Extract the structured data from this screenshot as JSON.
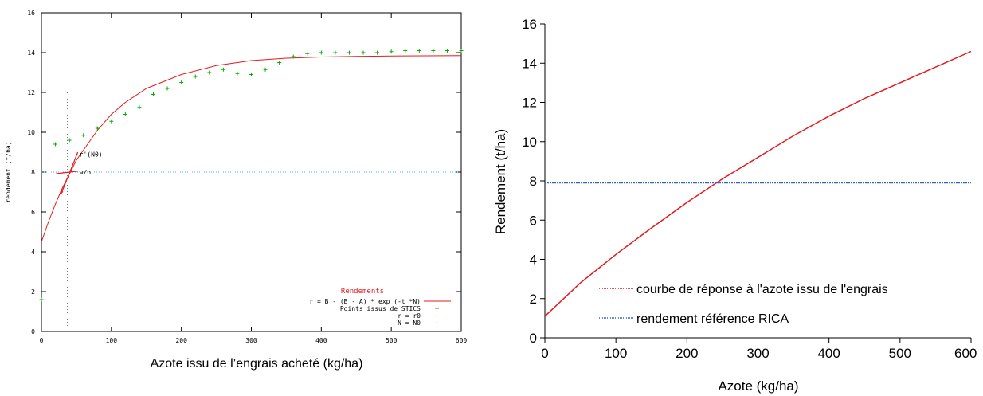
{
  "chart_data": [
    {
      "type": "line",
      "xlabel": "Azote issu de l’engrais acheté (kg/ha)",
      "ylabel": "rendement (t/ha)",
      "xlim": [
        0,
        600
      ],
      "ylim": [
        0,
        16
      ],
      "x_ticks": [
        "0",
        "100",
        "200",
        "300",
        "400",
        "500",
        "600"
      ],
      "y_ticks": [
        "0",
        "2",
        "4",
        "6",
        "8",
        "10",
        "12",
        "14",
        "16"
      ],
      "grid": false,
      "legend_title": "Rendements",
      "legend_position": "bottom-right",
      "annotations": [
        {
          "label": "r'(N0)",
          "x": 52,
          "y": 8.9
        },
        {
          "label": "w/p",
          "x": 52,
          "y": 8.0
        }
      ],
      "series": [
        {
          "name": "r = B - (B - A) * exp (-t *N)",
          "kind": "line",
          "color": "#e41a1c",
          "x": [
            0,
            10,
            20,
            30,
            40,
            50,
            60,
            80,
            100,
            120,
            150,
            200,
            250,
            300,
            350,
            400,
            450,
            500,
            550,
            600
          ],
          "y": [
            4.5,
            5.5,
            6.4,
            7.2,
            7.9,
            8.6,
            9.1,
            10.1,
            10.9,
            11.5,
            12.2,
            12.9,
            13.35,
            13.6,
            13.72,
            13.78,
            13.81,
            13.83,
            13.84,
            13.85
          ]
        },
        {
          "name": "Points issus de STICS",
          "kind": "scatter",
          "color": "#00b000",
          "x": [
            0,
            20,
            40,
            60,
            80,
            100,
            120,
            140,
            160,
            180,
            200,
            220,
            240,
            260,
            280,
            300,
            320,
            340,
            360,
            380,
            400,
            420,
            440,
            460,
            480,
            500,
            520,
            540,
            560,
            580,
            600
          ],
          "y": [
            1.6,
            9.4,
            9.6,
            9.85,
            10.2,
            10.55,
            10.9,
            11.25,
            11.9,
            12.2,
            12.5,
            12.8,
            13.0,
            13.15,
            12.95,
            12.9,
            13.15,
            13.5,
            13.8,
            13.95,
            14.0,
            14.0,
            14.0,
            14.0,
            14.0,
            14.05,
            14.1,
            14.1,
            14.1,
            14.1,
            14.1
          ]
        },
        {
          "name": "r = r0",
          "kind": "hline",
          "color": "#4da6ff",
          "y": 8.0
        },
        {
          "name": "N = N0",
          "kind": "vline",
          "color": "#777777",
          "x": 37
        }
      ]
    },
    {
      "type": "line",
      "xlabel": "Azote (kg/ha)",
      "ylabel": "Rendement (t/ha)",
      "xlim": [
        0,
        600
      ],
      "ylim": [
        0,
        16
      ],
      "x_ticks": [
        "0",
        "100",
        "200",
        "300",
        "400",
        "500",
        "600"
      ],
      "y_ticks": [
        "0",
        "2",
        "4",
        "6",
        "8",
        "10",
        "12",
        "14",
        "16"
      ],
      "grid": false,
      "legend_position": "bottom-right",
      "series": [
        {
          "name": "courbe de réponse à l'azote issu de l'engrais",
          "kind": "line",
          "color": "#e41a1c",
          "x": [
            0,
            50,
            100,
            150,
            200,
            250,
            300,
            350,
            400,
            450,
            500,
            550,
            600
          ],
          "y": [
            1.1,
            2.8,
            4.25,
            5.6,
            6.9,
            8.1,
            9.2,
            10.3,
            11.3,
            12.2,
            13.0,
            13.8,
            14.6
          ]
        },
        {
          "name": "rendement référence RICA",
          "kind": "hline",
          "color": "#3366cc",
          "y": 7.9
        }
      ]
    }
  ]
}
